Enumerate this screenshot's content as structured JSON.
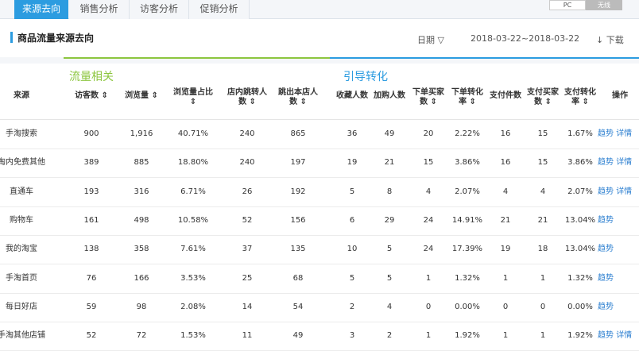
{
  "tabs": [
    "来源去向",
    "销售分析",
    "访客分析",
    "促销分析"
  ],
  "toggle": {
    "pc": "PC",
    "all": "无线"
  },
  "header": {
    "title": "商品流量来源去向",
    "date_label": "日期 ▽",
    "date_range": "2018-03-22~2018-03-22",
    "download": "↓ 下载"
  },
  "groups": {
    "traffic": "流量相关",
    "conversion": "引导转化"
  },
  "columns": [
    {
      "key": "source",
      "label": "来源",
      "lines": [
        "来源"
      ]
    },
    {
      "key": "visitors",
      "lines": [
        "访客数 ⇕"
      ]
    },
    {
      "key": "views",
      "lines": [
        "浏览量 ⇕"
      ]
    },
    {
      "key": "view_pct",
      "lines": [
        "浏览量占比",
        "⇕"
      ]
    },
    {
      "key": "jump_in",
      "lines": [
        "店内跳转人",
        "数 ⇕"
      ]
    },
    {
      "key": "jump_out",
      "lines": [
        "跳出本店人",
        "数 ⇕"
      ]
    },
    {
      "key": "fav",
      "lines": [
        "收藏人数"
      ]
    },
    {
      "key": "cart",
      "lines": [
        "加购人数"
      ]
    },
    {
      "key": "order_buyers",
      "lines": [
        "下单买家",
        "数 ⇕"
      ]
    },
    {
      "key": "order_rate",
      "lines": [
        "下单转化",
        "率 ⇕"
      ]
    },
    {
      "key": "pay_items",
      "lines": [
        "支付件数"
      ]
    },
    {
      "key": "pay_buyers",
      "lines": [
        "支付买家",
        "数 ⇕"
      ]
    },
    {
      "key": "pay_rate",
      "lines": [
        "支付转化",
        "率 ⇕"
      ]
    },
    {
      "key": "ops",
      "lines": [
        "操作"
      ]
    }
  ],
  "rows": [
    {
      "source": "手淘搜索",
      "visitors": "900",
      "views": "1,916",
      "view_pct": "40.71%",
      "jump_in": "240",
      "jump_out": "865",
      "fav": "36",
      "cart": "49",
      "order_buyers": "20",
      "order_rate": "2.22%",
      "pay_items": "16",
      "pay_buyers": "15",
      "pay_rate": "1.67%",
      "trend": "趋势",
      "detail": "详情"
    },
    {
      "source": "淘内免费其他",
      "visitors": "389",
      "views": "885",
      "view_pct": "18.80%",
      "jump_in": "240",
      "jump_out": "197",
      "fav": "19",
      "cart": "21",
      "order_buyers": "15",
      "order_rate": "3.86%",
      "pay_items": "16",
      "pay_buyers": "15",
      "pay_rate": "3.86%",
      "trend": "趋势",
      "detail": "详情"
    },
    {
      "source": "直通车",
      "visitors": "193",
      "views": "316",
      "view_pct": "6.71%",
      "jump_in": "26",
      "jump_out": "192",
      "fav": "5",
      "cart": "8",
      "order_buyers": "4",
      "order_rate": "2.07%",
      "pay_items": "4",
      "pay_buyers": "4",
      "pay_rate": "2.07%",
      "trend": "趋势",
      "detail": "详情"
    },
    {
      "source": "购物车",
      "visitors": "161",
      "views": "498",
      "view_pct": "10.58%",
      "jump_in": "52",
      "jump_out": "156",
      "fav": "6",
      "cart": "29",
      "order_buyers": "24",
      "order_rate": "14.91%",
      "pay_items": "21",
      "pay_buyers": "21",
      "pay_rate": "13.04%",
      "trend": "趋势",
      "detail": ""
    },
    {
      "source": "我的淘宝",
      "visitors": "138",
      "views": "358",
      "view_pct": "7.61%",
      "jump_in": "37",
      "jump_out": "135",
      "fav": "10",
      "cart": "5",
      "order_buyers": "24",
      "order_rate": "17.39%",
      "pay_items": "19",
      "pay_buyers": "18",
      "pay_rate": "13.04%",
      "trend": "趋势",
      "detail": ""
    },
    {
      "source": "手淘首页",
      "visitors": "76",
      "views": "166",
      "view_pct": "3.53%",
      "jump_in": "25",
      "jump_out": "68",
      "fav": "5",
      "cart": "5",
      "order_buyers": "1",
      "order_rate": "1.32%",
      "pay_items": "1",
      "pay_buyers": "1",
      "pay_rate": "1.32%",
      "trend": "趋势",
      "detail": ""
    },
    {
      "source": "每日好店",
      "visitors": "59",
      "views": "98",
      "view_pct": "2.08%",
      "jump_in": "14",
      "jump_out": "54",
      "fav": "2",
      "cart": "4",
      "order_buyers": "0",
      "order_rate": "0.00%",
      "pay_items": "0",
      "pay_buyers": "0",
      "pay_rate": "0.00%",
      "trend": "趋势",
      "detail": ""
    },
    {
      "source": "手淘其他店铺...",
      "visitors": "52",
      "views": "72",
      "view_pct": "1.53%",
      "jump_in": "11",
      "jump_out": "49",
      "fav": "3",
      "cart": "2",
      "order_buyers": "1",
      "order_rate": "1.92%",
      "pay_items": "1",
      "pay_buyers": "1",
      "pay_rate": "1.92%",
      "trend": "趋势",
      "detail": "详情"
    }
  ],
  "colors": {
    "accent": "#2c9ce0",
    "traffic_green": "#8cc63f",
    "link": "#2c7fd0"
  }
}
